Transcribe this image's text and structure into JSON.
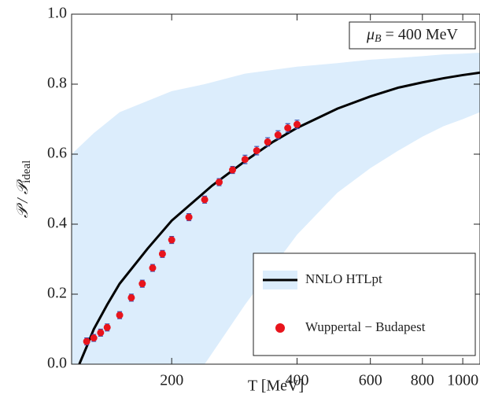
{
  "chart_data": {
    "type": "line",
    "xlabel": "T [MeV]",
    "ylabel": {
      "main": "𝒫 / 𝒫",
      "sub": "ideal"
    },
    "annotation": {
      "main": "μ",
      "sub": "B",
      "rest": " = 400 MeV"
    },
    "xscale": "log",
    "xlim": [
      115,
      1100
    ],
    "ylim": [
      0,
      1
    ],
    "xticks": [
      200,
      400,
      600,
      800,
      1000
    ],
    "yticks": [
      {
        "value": 0,
        "label": "0.0"
      },
      {
        "value": 0.2,
        "label": "0.2"
      },
      {
        "value": 0.4,
        "label": "0.4"
      },
      {
        "value": 0.6,
        "label": "0.6"
      },
      {
        "value": 0.8,
        "label": "0.8"
      },
      {
        "value": 1,
        "label": "1.0"
      }
    ],
    "legend": "lower right",
    "series": [
      {
        "name": "NNLO HTLpt",
        "color": "#000000",
        "band_color": "#dcedfc",
        "x": [
          120,
          125,
          130,
          140,
          150,
          175,
          200,
          250,
          300,
          350,
          400,
          500,
          600,
          700,
          800,
          900,
          1000,
          1100
        ],
        "values": [
          0,
          0.05,
          0.1,
          0.17,
          0.23,
          0.33,
          0.41,
          0.51,
          0.58,
          0.635,
          0.675,
          0.73,
          0.765,
          0.79,
          0.805,
          0.817,
          0.826,
          0.833
        ],
        "band_x": [
          115,
          130,
          150,
          200,
          240,
          300,
          400,
          500,
          600,
          700,
          800,
          900,
          1000,
          1100
        ],
        "band_lower": [
          0,
          0,
          0,
          0,
          0,
          0.17,
          0.37,
          0.49,
          0.56,
          0.61,
          0.65,
          0.68,
          0.7,
          0.72
        ],
        "band_upper": [
          0.6,
          0.66,
          0.72,
          0.78,
          0.8,
          0.83,
          0.85,
          0.86,
          0.87,
          0.875,
          0.88,
          0.885,
          0.887,
          0.89
        ]
      },
      {
        "name": "Wuppertal − Budapest",
        "type": "scatter",
        "color": "#e8141c",
        "error_color": "#3a4fb0",
        "x": [
          125,
          130,
          135,
          140,
          150,
          160,
          170,
          180,
          190,
          200,
          220,
          240,
          260,
          280,
          300,
          320,
          340,
          360,
          380,
          400
        ],
        "values": [
          0.065,
          0.075,
          0.09,
          0.105,
          0.14,
          0.19,
          0.23,
          0.275,
          0.315,
          0.355,
          0.42,
          0.47,
          0.52,
          0.555,
          0.585,
          0.61,
          0.635,
          0.655,
          0.675,
          0.685
        ],
        "errors": [
          0.01,
          0.01,
          0.01,
          0.01,
          0.01,
          0.01,
          0.01,
          0.01,
          0.01,
          0.01,
          0.01,
          0.01,
          0.01,
          0.01,
          0.012,
          0.012,
          0.012,
          0.012,
          0.012,
          0.012
        ]
      }
    ]
  }
}
